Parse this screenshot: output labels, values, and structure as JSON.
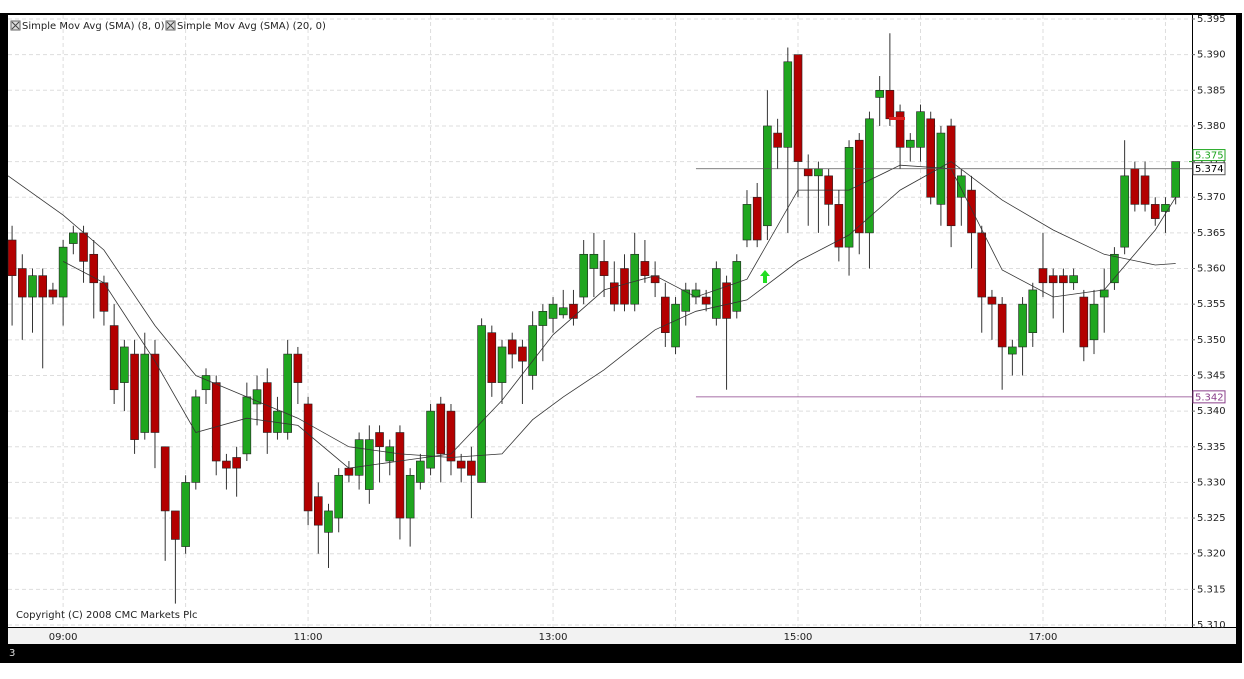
{
  "chart_data": {
    "type": "candlestick",
    "legend": [
      "Simple Mov Avg (SMA) (8, 0)",
      "Simple Mov Avg (SMA) (20, 0)"
    ],
    "copyright": "Copyright (C) 2008 CMC Markets Plc",
    "footer": "3",
    "up_color": "#1fa61f",
    "down_color": "#b30000",
    "grid": true,
    "x": [
      515,
      520,
      525,
      530,
      535,
      540,
      545,
      550,
      555,
      560,
      565,
      570,
      575,
      580,
      585,
      590,
      595,
      600,
      605,
      610,
      615,
      620,
      625,
      630,
      635,
      640,
      645,
      650,
      655,
      660,
      665,
      670,
      675,
      680,
      685,
      690,
      695,
      700,
      705,
      710,
      715,
      720,
      725,
      730,
      735,
      740,
      745,
      750,
      755,
      760,
      765,
      770,
      775,
      780,
      785,
      790,
      795,
      800,
      805,
      810,
      815,
      820,
      825,
      830,
      835,
      840,
      845,
      850,
      855,
      860,
      865,
      870,
      875,
      880,
      885,
      890,
      895,
      900,
      905,
      910,
      915,
      920,
      925,
      930,
      935,
      940,
      945,
      950,
      955,
      960,
      965,
      970,
      975,
      980,
      985,
      990,
      995,
      1000,
      1005,
      1010,
      1015,
      1020,
      1025,
      1030,
      1035,
      1040,
      1045,
      1050,
      1055,
      1060,
      1065,
      1070,
      1075,
      1080,
      1085
    ],
    "open": [
      5.364,
      5.36,
      5.356,
      5.359,
      5.357,
      5.356,
      5.3635,
      5.365,
      5.362,
      5.358,
      5.352,
      5.344,
      5.348,
      5.337,
      5.348,
      5.335,
      5.326,
      5.321,
      5.33,
      5.343,
      5.344,
      5.333,
      5.3335,
      5.334,
      5.341,
      5.344,
      5.337,
      5.337,
      5.348,
      5.341,
      5.328,
      5.323,
      5.325,
      5.332,
      5.331,
      5.329,
      5.337,
      5.333,
      5.337,
      5.325,
      5.33,
      5.332,
      5.341,
      5.34,
      5.333,
      5.333,
      5.33,
      5.351,
      5.344,
      5.35,
      5.349,
      5.345,
      5.352,
      5.353,
      5.3535,
      5.355,
      5.356,
      5.36,
      5.361,
      5.358,
      5.36,
      5.355,
      5.361,
      5.359,
      5.356,
      5.349,
      5.354,
      5.356,
      5.356,
      5.353,
      5.358,
      5.354,
      5.364,
      5.37,
      5.366,
      5.379,
      5.377,
      5.39,
      5.374,
      5.373,
      5.373,
      5.369,
      5.363,
      5.378,
      5.365,
      5.384,
      5.385,
      5.382,
      5.377,
      5.377,
      5.381,
      5.369,
      5.38,
      5.37,
      5.371,
      5.365,
      5.356,
      5.355,
      5.348,
      5.349,
      5.351,
      5.36,
      5.359,
      5.359,
      5.358,
      5.356,
      5.35,
      5.356,
      5.358,
      5.363,
      5.374,
      5.373,
      5.369,
      5.368,
      5.37
    ],
    "high": [
      5.366,
      5.362,
      5.36,
      5.36,
      5.358,
      5.364,
      5.366,
      5.366,
      5.364,
      5.359,
      5.355,
      5.35,
      5.35,
      5.351,
      5.35,
      5.335,
      5.326,
      5.331,
      5.343,
      5.346,
      5.345,
      5.334,
      5.335,
      5.344,
      5.345,
      5.346,
      5.342,
      5.35,
      5.349,
      5.342,
      5.33,
      5.327,
      5.332,
      5.333,
      5.337,
      5.338,
      5.338,
      5.336,
      5.338,
      5.332,
      5.334,
      5.341,
      5.342,
      5.341,
      5.334,
      5.335,
      5.353,
      5.352,
      5.35,
      5.351,
      5.35,
      5.354,
      5.355,
      5.356,
      5.357,
      5.357,
      5.364,
      5.365,
      5.364,
      5.361,
      5.362,
      5.365,
      5.364,
      5.361,
      5.358,
      5.356,
      5.358,
      5.358,
      5.357,
      5.361,
      5.359,
      5.362,
      5.371,
      5.372,
      5.385,
      5.381,
      5.391,
      5.39,
      5.376,
      5.375,
      5.374,
      5.371,
      5.378,
      5.379,
      5.382,
      5.387,
      5.393,
      5.383,
      5.379,
      5.383,
      5.382,
      5.38,
      5.381,
      5.374,
      5.373,
      5.366,
      5.357,
      5.356,
      5.35,
      5.356,
      5.358,
      5.365,
      5.36,
      5.36,
      5.36,
      5.357,
      5.357,
      5.36,
      5.363,
      5.378,
      5.375,
      5.375,
      5.37,
      5.37,
      5.375
    ],
    "low": [
      5.352,
      5.35,
      5.351,
      5.346,
      5.355,
      5.352,
      5.362,
      5.358,
      5.353,
      5.352,
      5.341,
      5.34,
      5.334,
      5.336,
      5.332,
      5.319,
      5.313,
      5.32,
      5.329,
      5.341,
      5.331,
      5.329,
      5.328,
      5.333,
      5.338,
      5.334,
      5.336,
      5.336,
      5.341,
      5.324,
      5.32,
      5.318,
      5.323,
      5.33,
      5.329,
      5.327,
      5.33,
      5.331,
      5.322,
      5.321,
      5.329,
      5.331,
      5.33,
      5.331,
      5.33,
      5.325,
      5.33,
      5.342,
      5.341,
      5.346,
      5.341,
      5.343,
      5.347,
      5.351,
      5.353,
      5.352,
      5.355,
      5.356,
      5.356,
      5.354,
      5.354,
      5.354,
      5.358,
      5.356,
      5.349,
      5.348,
      5.352,
      5.355,
      5.354,
      5.352,
      5.343,
      5.353,
      5.363,
      5.363,
      5.364,
      5.374,
      5.365,
      5.37,
      5.366,
      5.365,
      5.366,
      5.361,
      5.359,
      5.362,
      5.36,
      5.38,
      5.38,
      5.374,
      5.375,
      5.375,
      5.369,
      5.366,
      5.363,
      5.366,
      5.36,
      5.351,
      5.35,
      5.343,
      5.345,
      5.345,
      5.349,
      5.356,
      5.353,
      5.351,
      5.357,
      5.347,
      5.348,
      5.351,
      5.357,
      5.362,
      5.368,
      5.368,
      5.366,
      5.365,
      5.369
    ],
    "close": [
      5.359,
      5.356,
      5.359,
      5.356,
      5.356,
      5.363,
      5.365,
      5.361,
      5.358,
      5.354,
      5.343,
      5.349,
      5.336,
      5.348,
      5.337,
      5.326,
      5.322,
      5.33,
      5.342,
      5.345,
      5.333,
      5.332,
      5.332,
      5.342,
      5.343,
      5.337,
      5.34,
      5.348,
      5.344,
      5.326,
      5.324,
      5.326,
      5.331,
      5.331,
      5.336,
      5.336,
      5.335,
      5.335,
      5.325,
      5.331,
      5.333,
      5.34,
      5.334,
      5.333,
      5.332,
      5.331,
      5.352,
      5.344,
      5.349,
      5.348,
      5.347,
      5.352,
      5.354,
      5.355,
      5.3545,
      5.353,
      5.362,
      5.362,
      5.359,
      5.355,
      5.355,
      5.362,
      5.359,
      5.358,
      5.351,
      5.355,
      5.357,
      5.357,
      5.355,
      5.36,
      5.353,
      5.361,
      5.369,
      5.364,
      5.38,
      5.377,
      5.389,
      5.375,
      5.373,
      5.374,
      5.369,
      5.363,
      5.377,
      5.365,
      5.381,
      5.385,
      5.381,
      5.377,
      5.378,
      5.382,
      5.37,
      5.379,
      5.366,
      5.373,
      5.365,
      5.356,
      5.355,
      5.349,
      5.349,
      5.355,
      5.357,
      5.358,
      5.358,
      5.358,
      5.359,
      5.349,
      5.355,
      5.357,
      5.362,
      5.373,
      5.369,
      5.369,
      5.367,
      5.369,
      5.375
    ],
    "lines": [
      {
        "name": "Simple Mov Avg (SMA) (8, 0)",
        "color": "#333333",
        "x": [
          540,
          560,
          585,
          605,
          630,
          655,
          680,
          705,
          730,
          755,
          780,
          805,
          830,
          850,
          875,
          900,
          925,
          950,
          975,
          1000,
          1025,
          1050,
          1075,
          1085
        ],
        "values": [
          5.361,
          5.358,
          5.347,
          5.337,
          5.339,
          5.338,
          5.332,
          5.333,
          5.334,
          5.3415,
          5.3507,
          5.357,
          5.359,
          5.356,
          5.3585,
          5.371,
          5.371,
          5.3745,
          5.374,
          5.3598,
          5.356,
          5.357,
          5.3654,
          5.37
        ]
      },
      {
        "name": "Simple Mov Avg (SMA) (20, 0)",
        "color": "#333333",
        "x": [
          513,
          540,
          560,
          585,
          605,
          630,
          655,
          680,
          705,
          730,
          755,
          770,
          785,
          805,
          830,
          850,
          875,
          900,
          925,
          950,
          975,
          1000,
          1025,
          1050,
          1075,
          1085
        ],
        "values": [
          5.373,
          5.3675,
          5.3626,
          5.352,
          5.345,
          5.342,
          5.339,
          5.335,
          5.334,
          5.3335,
          5.334,
          5.3388,
          5.342,
          5.3458,
          5.3514,
          5.354,
          5.3556,
          5.361,
          5.3647,
          5.371,
          5.375,
          5.3696,
          5.3654,
          5.362,
          5.3605,
          5.3607
        ]
      }
    ],
    "levels": [
      {
        "value": 5.374,
        "color": "#555555",
        "x_start": 850
      },
      {
        "value": 5.342,
        "color": "#8a3f8a",
        "x_start": 850
      }
    ],
    "last_price": 5.375,
    "last_price_color": "#1fa61f",
    "xlim": [
      513,
      1093
    ],
    "xticks": [
      {
        "value": 540,
        "label": "09:00"
      },
      {
        "value": 660,
        "label": "11:00"
      },
      {
        "value": 780,
        "label": "13:00"
      },
      {
        "value": 900,
        "label": "15:00"
      },
      {
        "value": 1020,
        "label": "17:00"
      }
    ],
    "xgrid_minor": [
      600,
      720,
      840,
      960,
      1080
    ],
    "ylim": [
      5.31,
      5.395
    ],
    "yticks": [
      {
        "value": 5.395,
        "label": "5.395"
      },
      {
        "value": 5.39,
        "label": "5.390"
      },
      {
        "value": 5.385,
        "label": "5.385"
      },
      {
        "value": 5.38,
        "label": "5.380"
      },
      {
        "value": 5.375,
        "label": "5.375"
      },
      {
        "value": 5.37,
        "label": "5.370"
      },
      {
        "value": 5.365,
        "label": "5.365"
      },
      {
        "value": 5.36,
        "label": "5.360"
      },
      {
        "value": 5.355,
        "label": "5.355"
      },
      {
        "value": 5.35,
        "label": "5.350"
      },
      {
        "value": 5.345,
        "label": "5.345"
      },
      {
        "value": 5.34,
        "label": "5.340"
      },
      {
        "value": 5.335,
        "label": "5.335"
      },
      {
        "value": 5.33,
        "label": "5.330"
      },
      {
        "value": 5.325,
        "label": "5.325"
      },
      {
        "value": 5.32,
        "label": "5.320"
      },
      {
        "value": 5.315,
        "label": "5.315"
      },
      {
        "value": 5.31,
        "label": "5.310"
      }
    ]
  }
}
